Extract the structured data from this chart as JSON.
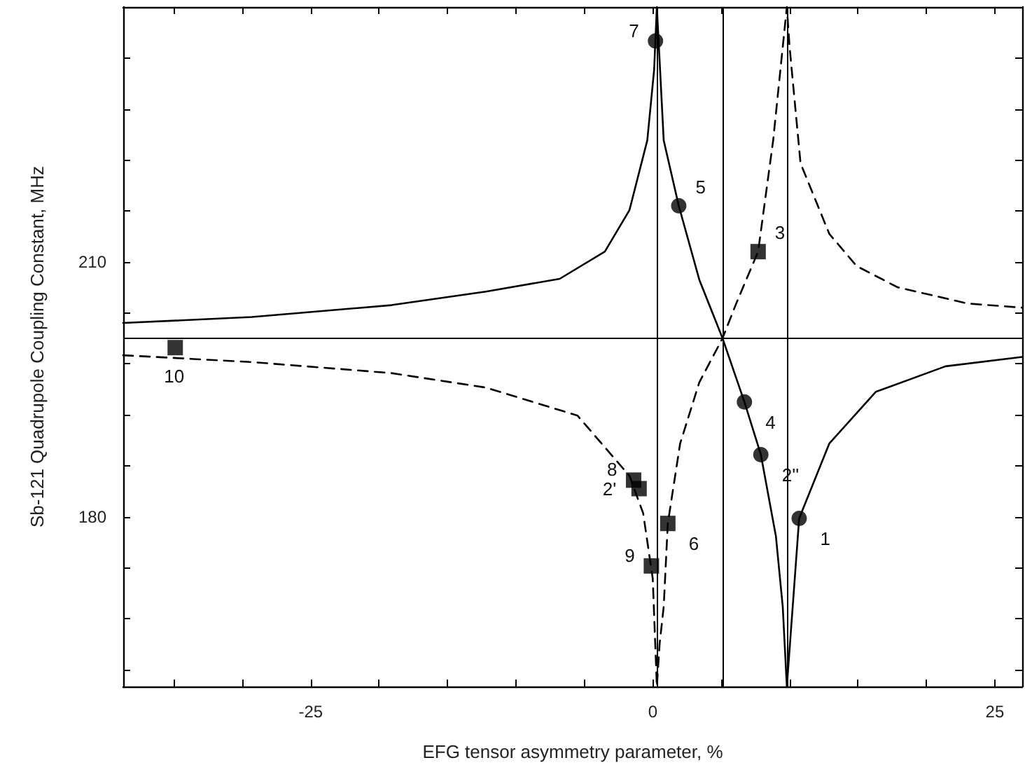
{
  "chart_data": {
    "type": "line",
    "xlabel": "EFG tensor asymmetry parameter, %",
    "ylabel": "Sb-121 Quadrupole Coupling Constant, MHz",
    "xlim": [
      -38.7,
      27
    ],
    "ylim": [
      160,
      240
    ],
    "xticks": [
      {
        "value": -35,
        "label": null
      },
      {
        "value": -30,
        "label": null
      },
      -25,
      {
        "value": -20,
        "label": null
      },
      {
        "value": -15,
        "label": null
      },
      {
        "value": -10,
        "label": null
      },
      {
        "value": -5,
        "label": null
      },
      0,
      {
        "value": 5,
        "label": null
      },
      {
        "value": 10,
        "label": null
      },
      {
        "value": 15,
        "label": null
      },
      {
        "value": 20,
        "label": null
      },
      25
    ],
    "yticks": [
      {
        "value": 162,
        "label": null
      },
      {
        "value": 168,
        "label": null
      },
      {
        "value": 174,
        "label": null
      },
      180,
      {
        "value": 186,
        "label": null
      },
      {
        "value": 192,
        "label": null
      },
      {
        "value": 198,
        "label": null
      },
      {
        "value": 204,
        "label": null
      },
      210,
      {
        "value": 216,
        "label": null
      },
      {
        "value": 222,
        "label": null
      },
      {
        "value": 228,
        "label": null
      },
      {
        "value": 234,
        "label": null
      }
    ],
    "grid": false,
    "series": [
      {
        "color": "#000000",
        "line_style": "solid",
        "marker": "none",
        "x": [
          -38.7,
          -29.3,
          -19.1,
          -12.2,
          -6.8,
          -3.5,
          -1.7,
          -0.4,
          0.1,
          0.3,
          0.8,
          1.9,
          3.4,
          5.1,
          6.7,
          7.9,
          9.0,
          9.5,
          9.8,
          10.7,
          12.9,
          16.3,
          21.4,
          27
        ],
        "values": [
          202.8,
          203.5,
          204.9,
          206.5,
          208.0,
          211.2,
          216.1,
          224.3,
          232.6,
          240,
          224.3,
          216.6,
          207.9,
          201.0,
          193.5,
          187.3,
          177.7,
          169.4,
          160,
          179.8,
          188.6,
          194.7,
          197.7,
          198.8
        ]
      },
      {
        "color": "#000000",
        "line_style": "dashed",
        "marker": "none",
        "x": [
          -38.7,
          -29.3,
          -19.1,
          -12.2,
          -5.5,
          -1.7,
          -0.7,
          0.0,
          0.3,
          0.5,
          0.8,
          1.1,
          2.0,
          3.4,
          5.1,
          6.1,
          7.7,
          8.8,
          9.5,
          9.8,
          10.0,
          10.8,
          12.9,
          14.9,
          17.9,
          23.0,
          27
        ],
        "values": [
          199.0,
          198.2,
          196.9,
          195.2,
          191.9,
          184.8,
          180.4,
          172.7,
          160,
          165,
          169.4,
          179.2,
          188.6,
          195.8,
          201.0,
          205.1,
          211.2,
          224.3,
          235.3,
          240,
          235.3,
          221.6,
          213.3,
          209.5,
          207.0,
          205.1,
          204.6
        ]
      },
      {
        "type": "scatter",
        "color": "#000000",
        "marker": "circle",
        "x": [
          0.2,
          1.9,
          6.7,
          7.9,
          10.7
        ],
        "values": [
          236.0,
          216.6,
          193.5,
          187.3,
          179.8
        ]
      },
      {
        "type": "scatter",
        "color": "#000000",
        "marker": "square",
        "x": [
          -34.9,
          -1.4,
          -1.0,
          1.1,
          -0.1,
          7.7
        ],
        "values": [
          199.9,
          184.3,
          183.3,
          179.2,
          174.2,
          211.2
        ]
      }
    ],
    "ref_lines": [
      {
        "axis": "x",
        "value": 0.3,
        "color": "#000000"
      },
      {
        "axis": "x",
        "value": 5.1,
        "color": "#000000"
      },
      {
        "axis": "x",
        "value": 9.8,
        "color": "#000000"
      },
      {
        "axis": "y",
        "value": 201.0,
        "color": "#000000"
      }
    ],
    "annotations": [
      {
        "text": "7",
        "x": 0.2,
        "y": 236.0
      },
      {
        "text": "5",
        "x": 1.9,
        "y": 216.6
      },
      {
        "text": "4",
        "x": 6.7,
        "y": 193.5
      },
      {
        "text": "2''",
        "x": 7.9,
        "y": 187.3
      },
      {
        "text": "1",
        "x": 10.7,
        "y": 179.8
      },
      {
        "text": "10",
        "x": -34.9,
        "y": 199.9
      },
      {
        "text": "8",
        "x": -1.4,
        "y": 184.3
      },
      {
        "text": "2'",
        "x": -1.0,
        "y": 183.3
      },
      {
        "text": "6",
        "x": 1.1,
        "y": 179.2
      },
      {
        "text": "9",
        "x": -0.1,
        "y": 174.2
      },
      {
        "text": "3",
        "x": 7.7,
        "y": 211.2
      }
    ]
  }
}
